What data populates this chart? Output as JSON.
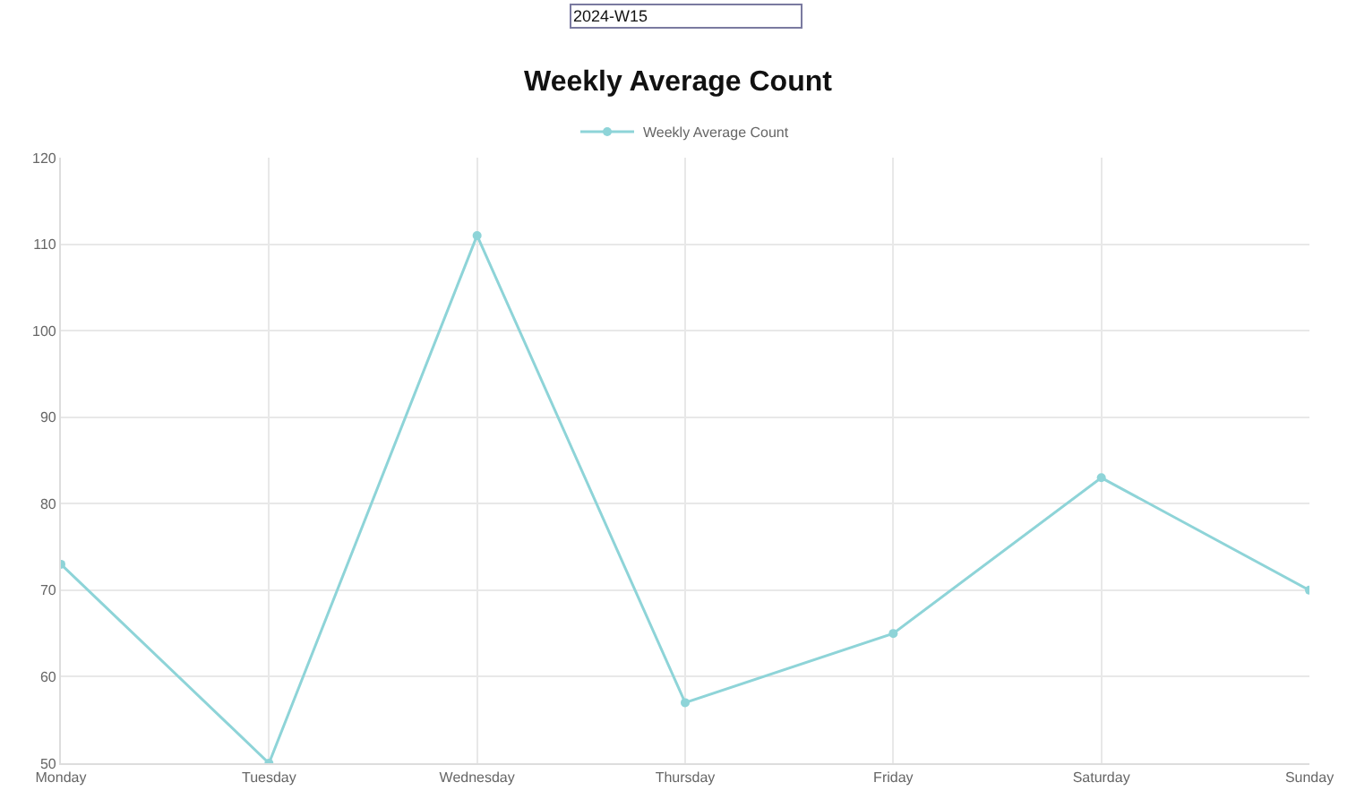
{
  "chart_data": {
    "type": "line",
    "title": "Weekly Average Count",
    "annotations": [
      "2024-W15"
    ],
    "categories": [
      "Monday",
      "Tuesday",
      "Wednesday",
      "Thursday",
      "Friday",
      "Saturday",
      "Sunday"
    ],
    "series": [
      {
        "name": "Weekly Average Count",
        "color": "#8ed4d8",
        "values": [
          73,
          50,
          111,
          57,
          65,
          83,
          70
        ]
      }
    ],
    "ylim": [
      50,
      120
    ],
    "yticks": [
      50,
      60,
      70,
      80,
      90,
      100,
      110,
      120
    ],
    "grid": true,
    "legend": "top",
    "marker": "circle",
    "line_style": "solid"
  }
}
